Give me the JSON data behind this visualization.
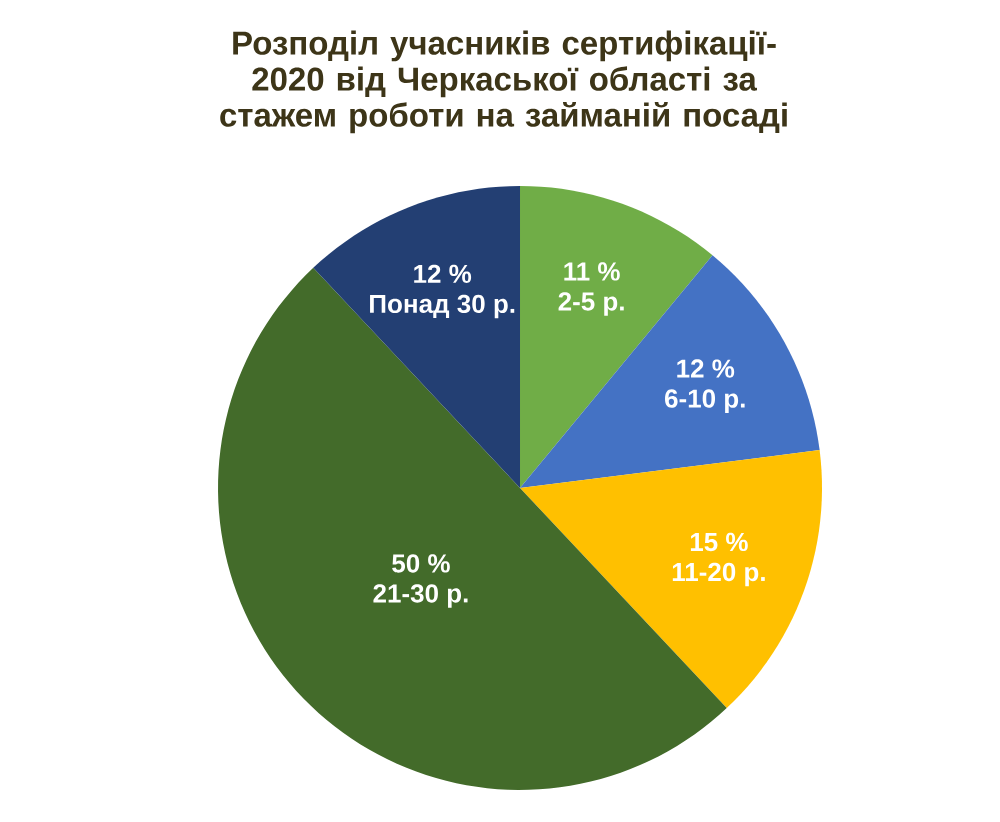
{
  "chart_data": {
    "type": "pie",
    "title": "Розподіл учасників сертифікації-2020 від Черкаської області за стажем роботи на займаній посаді",
    "categories": [
      "2-5 р.",
      "6-10 р.",
      "11-20 р.",
      "21-30 р.",
      "Понад 30 р."
    ],
    "values": [
      11,
      12,
      15,
      50,
      12
    ],
    "value_labels": [
      "11 %",
      "12 %",
      "15 %",
      "50 %",
      "12 %"
    ],
    "colors": [
      "#70ad47",
      "#4472c4",
      "#ffc000",
      "#436b2a",
      "#233f73"
    ]
  }
}
